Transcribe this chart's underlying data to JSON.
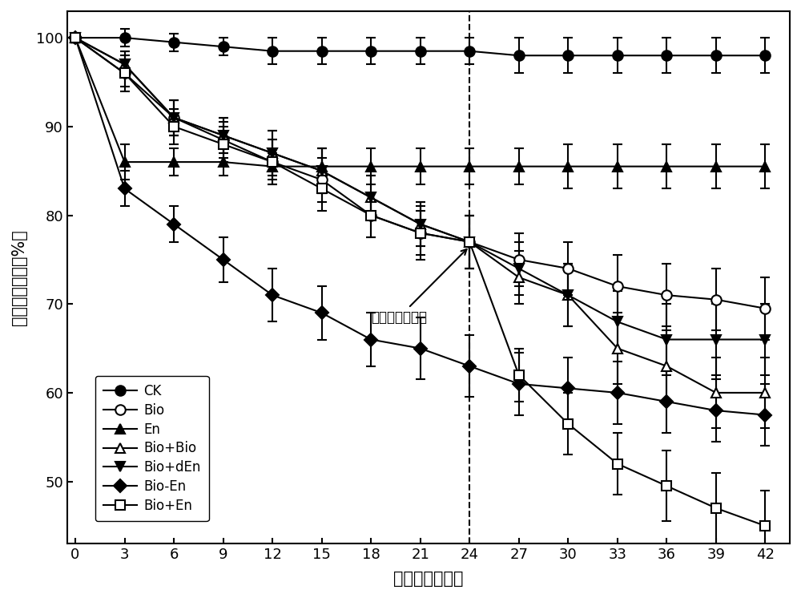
{
  "x": [
    0,
    3,
    6,
    9,
    12,
    15,
    18,
    21,
    24,
    27,
    30,
    33,
    36,
    39,
    42
  ],
  "series": {
    "CK": {
      "y": [
        100,
        100,
        99.5,
        99,
        98.5,
        98.5,
        98.5,
        98.5,
        98.5,
        98,
        98,
        98,
        98,
        98,
        98
      ],
      "yerr": [
        0.5,
        1,
        1,
        1,
        1.5,
        1.5,
        1.5,
        1.5,
        1.5,
        2,
        2,
        2,
        2,
        2,
        2
      ],
      "marker": "o",
      "fillstyle": "full",
      "label": "CK"
    },
    "Bio": {
      "y": [
        100,
        96,
        91,
        88.5,
        86,
        84,
        80,
        78,
        77,
        75,
        74,
        72,
        71,
        70.5,
        69.5
      ],
      "yerr": [
        0.5,
        2,
        2,
        2,
        2.5,
        2.5,
        2.5,
        3,
        3,
        3,
        3,
        3.5,
        3.5,
        3.5,
        3.5
      ],
      "marker": "o",
      "fillstyle": "none",
      "label": "Bio"
    },
    "En": {
      "y": [
        100,
        86,
        86,
        86,
        85.5,
        85.5,
        85.5,
        85.5,
        85.5,
        85.5,
        85.5,
        85.5,
        85.5,
        85.5,
        85.5
      ],
      "yerr": [
        0.5,
        2,
        1.5,
        1.5,
        1.5,
        2,
        2,
        2,
        2,
        2,
        2.5,
        2.5,
        2.5,
        2.5,
        2.5
      ],
      "marker": "^",
      "fillstyle": "full",
      "label": "En"
    },
    "Bio+Bio": {
      "y": [
        100,
        97,
        91,
        89,
        87,
        85,
        82,
        79,
        77,
        73,
        71,
        65,
        63,
        60,
        60
      ],
      "yerr": [
        0.5,
        1.5,
        2,
        2,
        2.5,
        2.5,
        2.5,
        2.5,
        3,
        3,
        3.5,
        4,
        4,
        4,
        4
      ],
      "marker": "^",
      "fillstyle": "none",
      "label": "Bio+Bio"
    },
    "Bio+dEn": {
      "y": [
        100,
        97,
        91,
        89,
        87,
        85,
        82,
        79,
        77,
        74,
        71,
        68,
        66,
        66,
        66
      ],
      "yerr": [
        0.5,
        1.5,
        2,
        2,
        2.5,
        2.5,
        2.5,
        2.5,
        3,
        3,
        3.5,
        3.5,
        4,
        4,
        4
      ],
      "marker": "v",
      "fillstyle": "full",
      "label": "Bio+dEn"
    },
    "Bio-En": {
      "y": [
        100,
        83,
        79,
        75,
        71,
        69,
        66,
        65,
        63,
        61,
        60.5,
        60,
        59,
        58,
        57.5
      ],
      "yerr": [
        0.5,
        2,
        2,
        2.5,
        3,
        3,
        3,
        3.5,
        3.5,
        3.5,
        3.5,
        3.5,
        3.5,
        3.5,
        3.5
      ],
      "marker": "D",
      "fillstyle": "full",
      "label": "Bio-En"
    },
    "Bio+En": {
      "y": [
        100,
        96,
        90,
        88,
        86,
        83,
        80,
        78,
        77,
        62,
        56.5,
        52,
        49.5,
        47,
        45
      ],
      "yerr": [
        0.5,
        1.5,
        2,
        2,
        2.5,
        2.5,
        2.5,
        2.5,
        3,
        3,
        3.5,
        3.5,
        4,
        4,
        4
      ],
      "marker": "s",
      "fillstyle": "none",
      "label": "Bio+En"
    }
  },
  "xlabel": "处理时间（天）",
  "ylabel": "石油烃残留率（%）",
  "annotation_text": "菌剂／酶剂补给",
  "vline_x": 24,
  "ylim": [
    43,
    103
  ],
  "yticks": [
    50,
    60,
    70,
    80,
    90,
    100
  ],
  "xticks": [
    0,
    3,
    6,
    9,
    12,
    15,
    18,
    21,
    24,
    27,
    30,
    33,
    36,
    39,
    42
  ],
  "figsize": [
    10,
    7.46
  ],
  "dpi": 100,
  "marker_sizes": {
    "CK": 9,
    "Bio": 9,
    "En": 9,
    "Bio+Bio": 9,
    "Bio+dEn": 9,
    "Bio-En": 8,
    "Bio+En": 9
  }
}
